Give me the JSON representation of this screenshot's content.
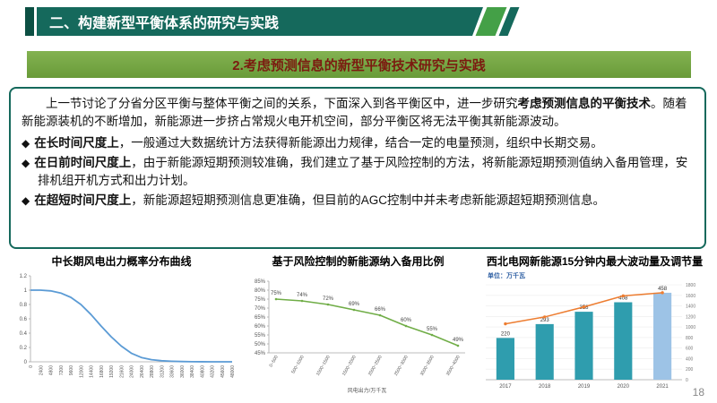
{
  "header": {
    "section_title": "二、构建新型平衡体系的研究与实践"
  },
  "subheader": {
    "title": "2.考虑预测信息的新型平衡技术研究与实践"
  },
  "content": {
    "bullet_marker": "◆",
    "intro_p1": "上一节讨论了分省分区平衡与整体平衡之间的关系，下面深入到各平衡区中，进一步研究",
    "intro_bold": "考虑预测信息的平衡技术",
    "intro_p2": "。随着新能源装机的不断增加，新能源进一步挤占常规火电开机空间，部分平衡区将无法平衡其新能源波动。",
    "bullets": [
      {
        "bold": "在长时间尺度上",
        "rest": "，一般通过大数据统计方法获得新能源出力规律，结合一定的电量预测，组织中长期交易。"
      },
      {
        "bold": "在日前时间尺度上",
        "rest": "，由于新能源短期预测较准确，我们建立了基于风险控制的方法，将新能源短期预测值纳入备用管理，安排机组开机方式和出力计划。"
      },
      {
        "bold": "在超短时间尺度上",
        "rest": "，新能源超短期预测信息更准确，但目前的AGC控制中并未考虑新能源超短期预测信息。"
      }
    ]
  },
  "page": {
    "number": "18"
  },
  "colors": {
    "banner_teal": "#15695c",
    "banner_green": "#6fa243",
    "subtitle_text": "#7b1b10"
  },
  "chart_data": [
    {
      "type": "line",
      "title": "中长期风电出力概率分布曲线",
      "x": [
        0,
        2400,
        4800,
        7200,
        9600,
        12000,
        14400,
        16800,
        19200,
        21600,
        24000,
        26400,
        28800,
        31200,
        33600,
        36000,
        38400,
        40800,
        43200,
        45600,
        48000
      ],
      "values": [
        1.0,
        1.0,
        0.99,
        0.96,
        0.9,
        0.8,
        0.66,
        0.5,
        0.35,
        0.22,
        0.12,
        0.06,
        0.03,
        0.015,
        0.008,
        0.004,
        0.002,
        0.001,
        0,
        0,
        0
      ],
      "ylim": [
        0,
        1.2
      ],
      "yticks": [
        "0",
        "0.2",
        "0.4",
        "0.6",
        "0.8",
        "1",
        "1.2"
      ],
      "line_color": "#5b9bd5"
    },
    {
      "type": "line",
      "title": "基于风险控制的新能源纳入备用比例",
      "categories": [
        "0~500",
        "500~1000",
        "1000~1500",
        "1500~2000",
        "2000~2500",
        "2500~3000",
        "3000~3500",
        "3500~4000"
      ],
      "values": [
        75,
        74,
        72,
        69,
        66,
        60,
        55,
        49
      ],
      "labels": [
        "75%",
        "74%",
        "72%",
        "69%",
        "66%",
        "60%",
        "55%",
        "49%"
      ],
      "ylim": [
        45,
        85
      ],
      "yticks": [
        "45%",
        "50%",
        "55%",
        "60%",
        "65%",
        "70%",
        "75%",
        "80%",
        "85%"
      ],
      "xlabel": "风电出力/万千瓦",
      "line_color": "#70ad47"
    },
    {
      "type": "bar-line",
      "title": "西北电网新能源15分钟内最大波动量及调节量",
      "unit_label": "单位：万千瓦",
      "categories": [
        "2017",
        "2018",
        "2019",
        "2020",
        "2021"
      ],
      "bar_values": [
        220,
        293,
        358,
        408,
        458
      ],
      "bar_colors": [
        "#2f9dae",
        "#2f9dae",
        "#2f9dae",
        "#2f9dae",
        "#9dc3e6"
      ],
      "line_values": [
        1060,
        1190,
        1380,
        1590,
        1650
      ],
      "line_color": "#ed7d31",
      "left_axis_max": 500,
      "right_axis_max": 1800,
      "right_axis_ticks": [
        0,
        200,
        400,
        600,
        800,
        1000,
        1200,
        1400,
        1600,
        1800
      ]
    }
  ]
}
